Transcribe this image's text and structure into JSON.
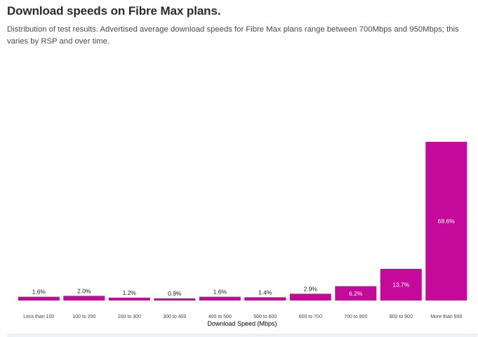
{
  "header": {
    "title": "Download speeds on Fibre Max plans.",
    "subtitle": "Distribution of test results. Advertised average download speeds for Fibre Max plans range between 700Mbps and 950Mbps; this varies by RSP and over time."
  },
  "colors": {
    "bar": "#c5099b",
    "label_dark": "#1a1a1a",
    "label_light": "#ffffff",
    "axis_text": "#444444"
  },
  "chart_data": {
    "type": "bar",
    "categories": [
      "Less than 100",
      "100 to 200",
      "200 to 300",
      "300 to 400",
      "400 to 500",
      "500 to 600",
      "600 to 700",
      "700 to 800",
      "800 to 900",
      "More than 900"
    ],
    "values": [
      1.6,
      2.0,
      1.2,
      0.9,
      1.6,
      1.4,
      2.9,
      6.2,
      13.7,
      68.6
    ],
    "value_labels": [
      "1.6%",
      "2.0%",
      "1.2%",
      "0.9%",
      "1.6%",
      "1.4%",
      "2.9%",
      "6.2%",
      "13.7%",
      "68.6%"
    ],
    "title": "",
    "xlabel": "Download Speed (Mbps)",
    "ylabel": "",
    "ylim": [
      0,
      70
    ],
    "grid": false,
    "legend": "none"
  }
}
